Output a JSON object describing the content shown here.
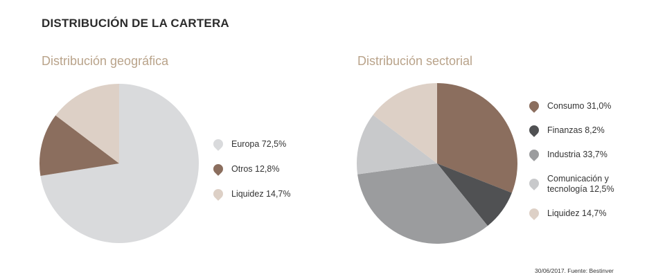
{
  "header": {
    "title": "DISTRIBUCIÓN DE LA CARTERA"
  },
  "chart_data": [
    {
      "type": "pie",
      "title": "Distribución geográfica",
      "start_angle_deg": 0,
      "direction": "clockwise",
      "slices": [
        {
          "label": "Europa 72,5%",
          "value": 72.5,
          "color": "#d9dadc"
        },
        {
          "label": "Otros 12,8%",
          "value": 12.8,
          "color": "#8b6e5e"
        },
        {
          "label": "Liquidez 14,7%",
          "value": 14.7,
          "color": "#ddd0c6"
        }
      ]
    },
    {
      "type": "pie",
      "title": "Distribución sectorial",
      "start_angle_deg": 0,
      "direction": "clockwise",
      "slices": [
        {
          "label": "Consumo 31,0%",
          "value": 31.0,
          "color": "#8b6e5e"
        },
        {
          "label": "Finanzas 8,2%",
          "value": 8.2,
          "color": "#505153"
        },
        {
          "label": "Industria 33,7%",
          "value": 33.7,
          "color": "#9b9c9e"
        },
        {
          "label": "Comunicación y\ntecnología 12,5%",
          "value": 12.5,
          "color": "#c8c9cb"
        },
        {
          "label": "Liquidez 14,7%",
          "value": 14.7,
          "color": "#ddd0c6"
        }
      ]
    }
  ],
  "footer": {
    "source": "30/06/2017. Fuente: Bestinver"
  }
}
